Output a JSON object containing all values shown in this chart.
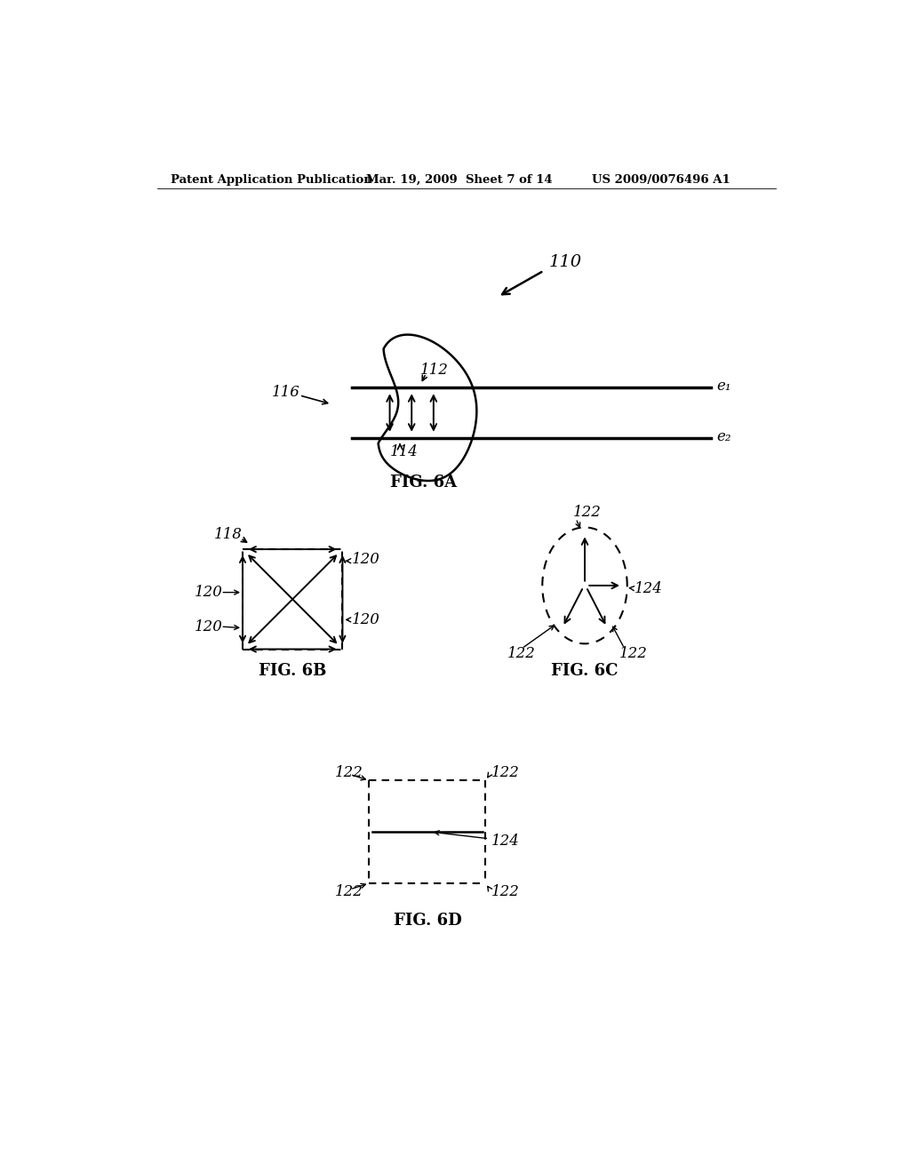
{
  "bg_color": "#ffffff",
  "header_left": "Patent Application Publication",
  "header_mid": "Mar. 19, 2009  Sheet 7 of 14",
  "header_right": "US 2009/0076496 A1",
  "fig6a_label": "FIG. 6A",
  "fig6b_label": "FIG. 6B",
  "fig6c_label": "FIG. 6C",
  "fig6d_label": "FIG. 6D",
  "label_110": "110",
  "label_112": "112",
  "label_114": "114",
  "label_116": "116",
  "label_118": "118",
  "label_120": "120",
  "label_122": "122",
  "label_124": "124",
  "label_e1": "e₁",
  "label_e2": "e₂",
  "header_fontsize": 9.5,
  "label_fontsize": 12,
  "caption_fontsize": 13
}
